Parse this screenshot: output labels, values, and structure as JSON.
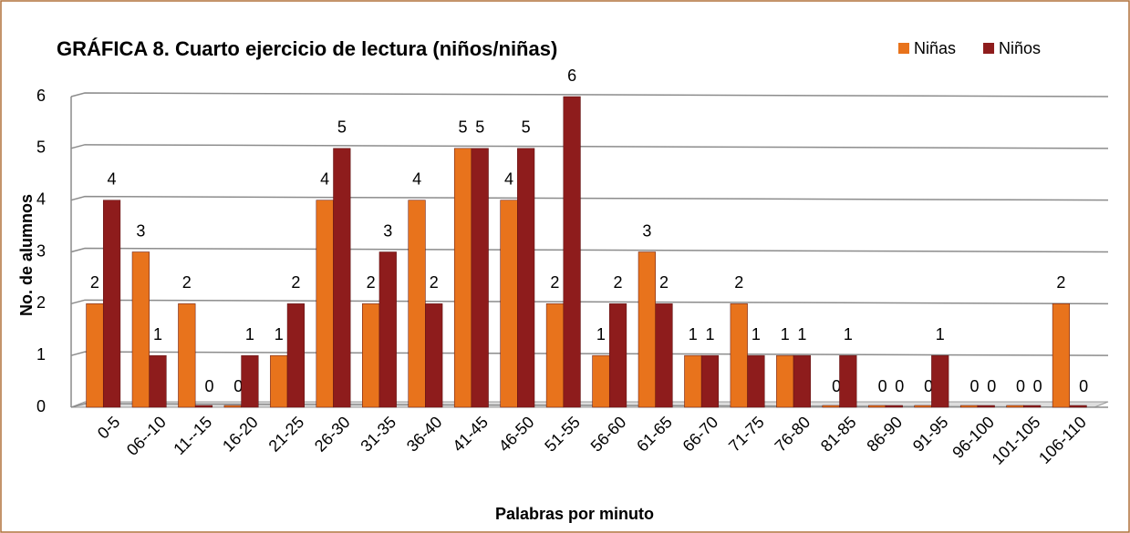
{
  "chart_data": {
    "type": "bar",
    "title": "GRÁFICA 8. Cuarto ejercicio de lectura (niños/niñas)",
    "xlabel": "Palabras por minuto",
    "ylabel": "No. de alumnos",
    "categories": [
      "0-5",
      "06--10",
      "11--15",
      "16-20",
      "21-25",
      "26-30",
      "31-35",
      "36-40",
      "41-45",
      "46-50",
      "51-55",
      "56-60",
      "61-65",
      "66-70",
      "71-75",
      "76-80",
      "81-85",
      "86-90",
      "91-95",
      "96-100",
      "101-105",
      "106-110"
    ],
    "series": [
      {
        "name": "Niñas",
        "color": "#e8731c",
        "values": [
          2,
          3,
          2,
          0,
          1,
          4,
          2,
          4,
          5,
          4,
          2,
          1,
          3,
          1,
          2,
          1,
          0,
          0,
          0,
          0,
          0,
          2
        ]
      },
      {
        "name": "Niños",
        "color": "#8e1c1c",
        "values": [
          4,
          1,
          0,
          1,
          2,
          5,
          3,
          2,
          5,
          5,
          6,
          2,
          2,
          1,
          1,
          1,
          1,
          0,
          1,
          0,
          0,
          0
        ]
      }
    ],
    "ylim": [
      0,
      6
    ],
    "yticks": [
      0,
      1,
      2,
      3,
      4,
      5,
      6
    ],
    "grid": true,
    "legend": "top-right"
  }
}
